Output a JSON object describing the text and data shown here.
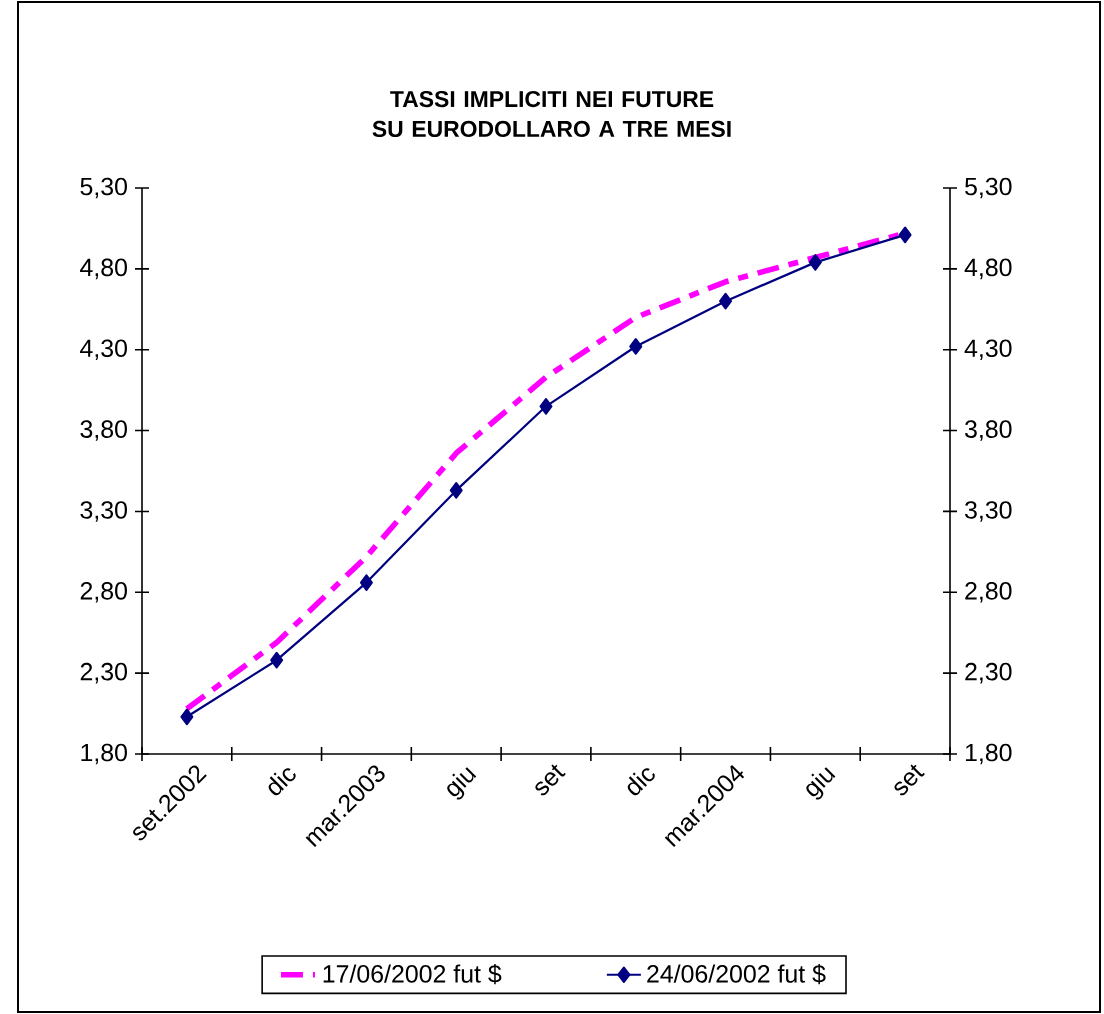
{
  "chart_data": {
    "type": "line",
    "title": "TASSI IMPLICITI NEI FUTURE SU EURODOLLARO A TRE MESI",
    "categories": [
      "set.2002",
      "dic",
      "mar.2003",
      "giu",
      "set",
      "dic",
      "mar.2004",
      "giu",
      "set"
    ],
    "series": [
      {
        "name": "17/06/2002 fut $",
        "color": "#ff00ff",
        "marker": "none",
        "line_style": "dashed",
        "values": [
          2.08,
          2.49,
          3.02,
          3.66,
          4.13,
          4.5,
          4.72,
          4.87,
          5.02
        ]
      },
      {
        "name": "24/06/2002 fut $",
        "color": "#000080",
        "marker": "diamond",
        "line_style": "solid",
        "values": [
          2.03,
          2.38,
          2.86,
          3.43,
          3.95,
          4.32,
          4.6,
          4.84,
          5.01
        ]
      }
    ],
    "ylim": [
      1.8,
      5.3
    ],
    "yticks": [
      {
        "value": 1.8,
        "label": "1,80"
      },
      {
        "value": 2.3,
        "label": "2,30"
      },
      {
        "value": 2.8,
        "label": "2,80"
      },
      {
        "value": 3.3,
        "label": "3,30"
      },
      {
        "value": 3.8,
        "label": "3,80"
      },
      {
        "value": 4.3,
        "label": "4,30"
      },
      {
        "value": 4.8,
        "label": "4,80"
      },
      {
        "value": 5.3,
        "label": "5,30"
      }
    ],
    "y2lim": [
      1.8,
      5.3
    ],
    "y2ticks": [
      {
        "value": 1.8,
        "label": "1,80"
      },
      {
        "value": 2.3,
        "label": "2,30"
      },
      {
        "value": 2.8,
        "label": "2,80"
      },
      {
        "value": 3.3,
        "label": "3,30"
      },
      {
        "value": 3.8,
        "label": "3,80"
      },
      {
        "value": 4.3,
        "label": "4,30"
      },
      {
        "value": 4.8,
        "label": "4,80"
      },
      {
        "value": 5.3,
        "label": "5,30"
      }
    ],
    "grid": false,
    "legend": "bottom"
  }
}
